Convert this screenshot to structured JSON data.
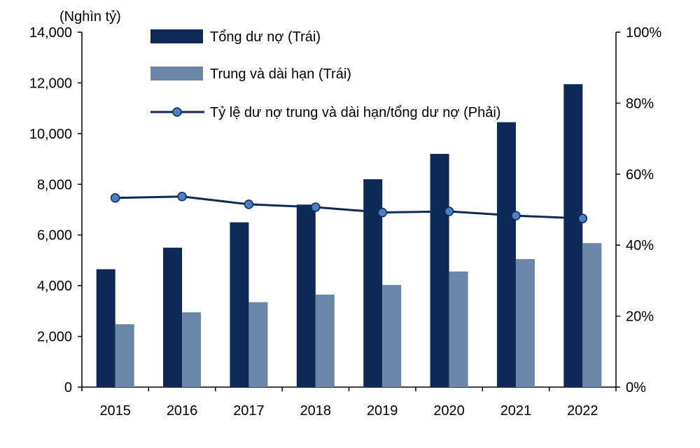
{
  "chart_data": {
    "type": "bar",
    "unit_label": "(Nghìn tỷ)",
    "categories": [
      "2015",
      "2016",
      "2017",
      "2018",
      "2019",
      "2020",
      "2021",
      "2022"
    ],
    "series": [
      {
        "name": "Tổng dư nợ (Trái)",
        "axis": "left",
        "kind": "bar",
        "color": "#0d2a57",
        "values": [
          4650,
          5500,
          6500,
          7200,
          8200,
          9200,
          10450,
          11950
        ]
      },
      {
        "name": "Trung và dài hạn (Trái)",
        "axis": "left",
        "kind": "bar",
        "color": "#6b86a8",
        "values": [
          2480,
          2950,
          3350,
          3650,
          4030,
          4560,
          5050,
          5680
        ]
      },
      {
        "name": "Tỷ lệ dư nợ trung và dài hạn/tổng dư nợ (Phải)",
        "axis": "right",
        "kind": "line",
        "color": "#0d2a57",
        "marker_color": "#4a7fc6",
        "values": [
          0.533,
          0.537,
          0.515,
          0.507,
          0.492,
          0.495,
          0.483,
          0.475
        ]
      }
    ],
    "y_left": {
      "min": 0,
      "max": 14000,
      "ticks": [
        "0",
        "2,000",
        "4,000",
        "6,000",
        "8,000",
        "10,000",
        "12,000",
        "14,000"
      ]
    },
    "y_right": {
      "min": 0,
      "max": 1,
      "ticks": [
        "0%",
        "20%",
        "40%",
        "60%",
        "80%",
        "100%"
      ]
    },
    "grid": false,
    "legend_position": "top-center"
  }
}
